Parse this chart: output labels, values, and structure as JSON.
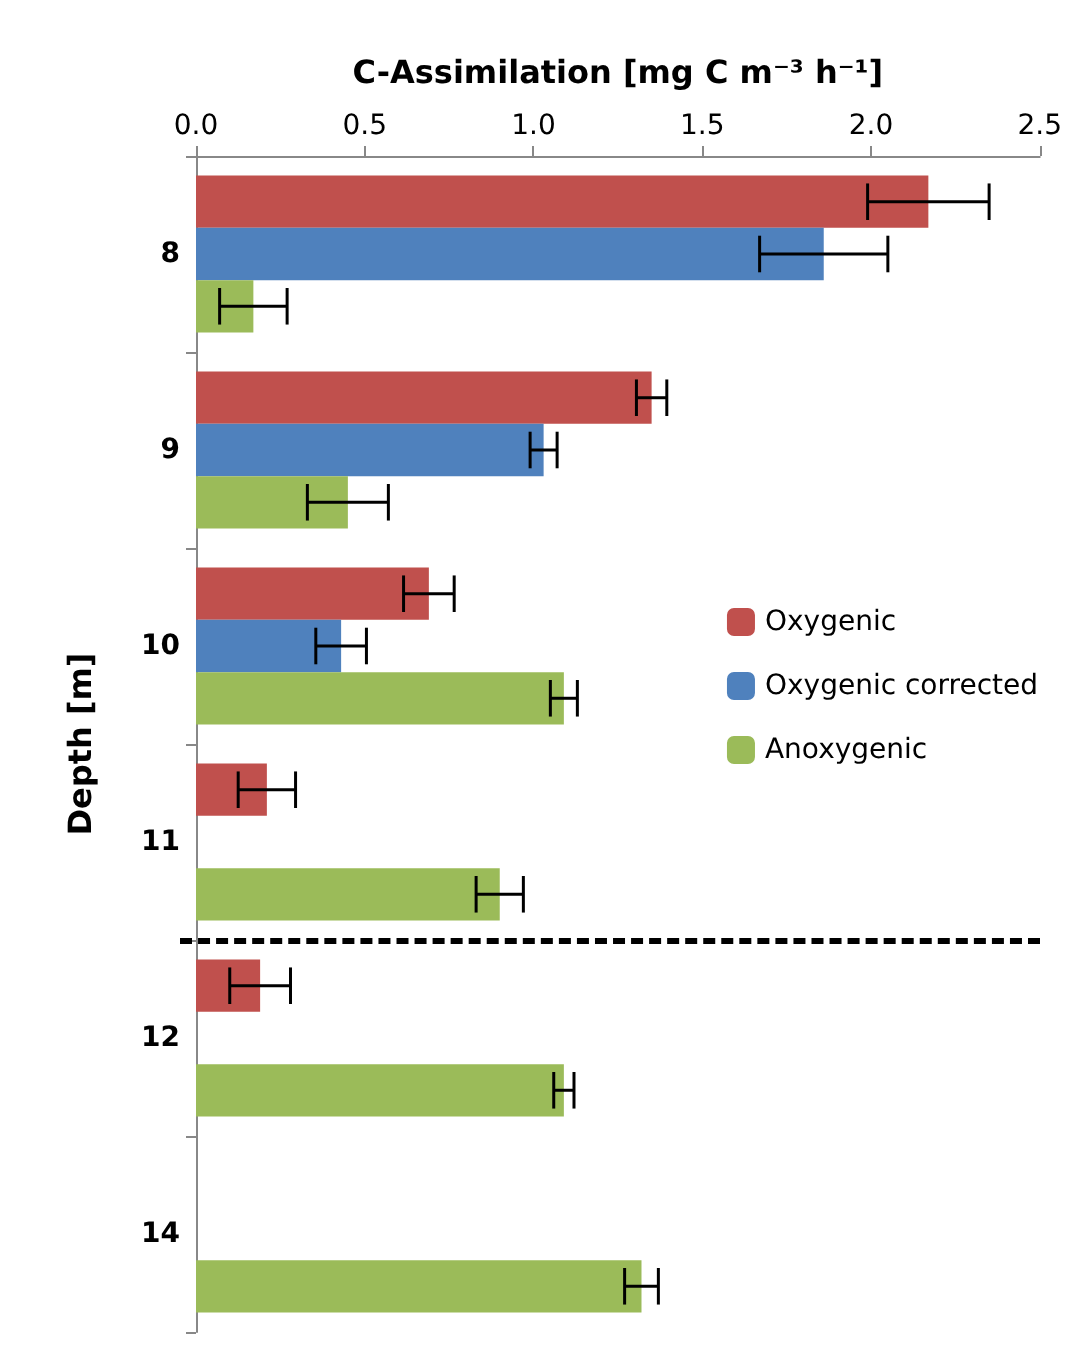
{
  "chart_data": {
    "type": "bar",
    "orientation": "horizontal",
    "xlabel": "C-Assimilation [mg C m⁻³ h⁻¹]",
    "ylabel": "Depth [m]",
    "categories": [
      "8",
      "9",
      "10",
      "11",
      "12",
      "14"
    ],
    "series": [
      {
        "name": "Oxygenic",
        "color": "#c0504d",
        "values": [
          2.17,
          1.35,
          0.69,
          0.21,
          0.19,
          0
        ],
        "errors": [
          0.18,
          0.045,
          0.075,
          0.085,
          0.09,
          null
        ]
      },
      {
        "name": "Oxygenic corrected",
        "color": "#4f81bd",
        "values": [
          1.86,
          1.03,
          0.43,
          null,
          null,
          null
        ],
        "errors": [
          0.19,
          0.04,
          0.075,
          null,
          null,
          null
        ]
      },
      {
        "name": "Anoxygenic",
        "color": "#9bbb59",
        "values": [
          0.17,
          0.45,
          1.09,
          0.9,
          1.09,
          1.32
        ],
        "errors": [
          0.1,
          0.12,
          0.04,
          0.07,
          0.03,
          0.05
        ]
      }
    ],
    "xlim": [
      0,
      2.5
    ],
    "xticks": [
      {
        "value": 0,
        "label": "0.0"
      },
      {
        "value": 0.5,
        "label": "0.5"
      },
      {
        "value": 1,
        "label": "1.0"
      },
      {
        "value": 1.5,
        "label": "1.5"
      },
      {
        "value": 2,
        "label": "2.0"
      },
      {
        "value": 2.5,
        "label": "2.5"
      }
    ],
    "grid": false,
    "legend": "right"
  }
}
